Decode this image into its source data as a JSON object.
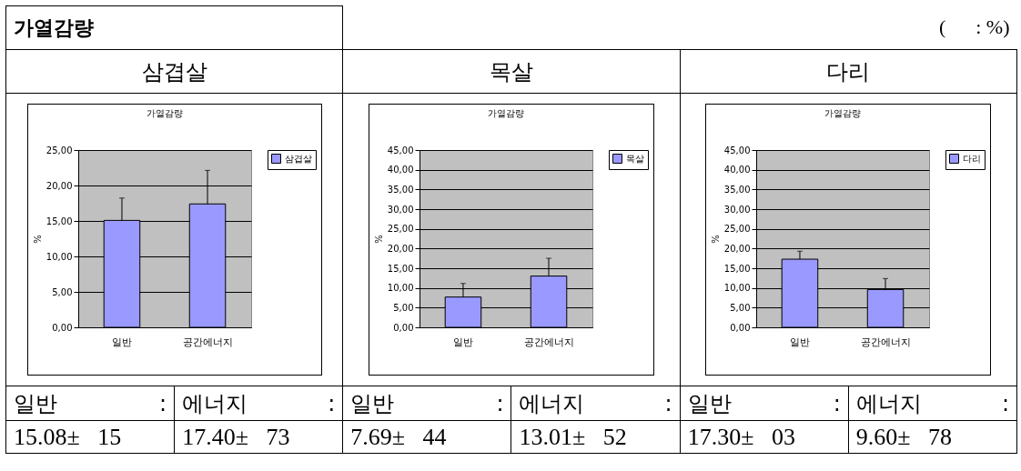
{
  "chart_data": [
    {
      "type": "bar",
      "title": "가열감량",
      "subtitle": "삼겹살",
      "ylabel": "%",
      "categories": [
        "일반",
        "공간에너지"
      ],
      "series": [
        {
          "name": "삼겹살",
          "color": "#9999ff",
          "values": [
            15.08,
            17.4
          ],
          "errors": [
            [
              15.08,
              18.23
            ],
            [
              17.4,
              22.13
            ]
          ]
        }
      ],
      "ylim": [
        0,
        25
      ],
      "yticks": [
        {
          "value": 0,
          "label": "0,00"
        },
        {
          "value": 5,
          "label": "5,00"
        },
        {
          "value": 10,
          "label": "10,00"
        },
        {
          "value": 15,
          "label": "15,00"
        },
        {
          "value": 20,
          "label": "20,00"
        },
        {
          "value": 25,
          "label": "25,00"
        }
      ],
      "grid": "y",
      "legend": "right",
      "annotations": [
        "가열감량",
        "(      : %)",
        "일반 :",
        "15.08±   15",
        "에너지 :",
        "17.40±   73"
      ]
    },
    {
      "type": "bar",
      "title": "가열감량",
      "subtitle": "목살",
      "ylabel": "%",
      "categories": [
        "일반",
        "공간에너지"
      ],
      "series": [
        {
          "name": "목살",
          "color": "#9999ff",
          "values": [
            7.69,
            13.01
          ],
          "errors": [
            [
              7.69,
              11.13
            ],
            [
              13.01,
              17.53
            ]
          ]
        }
      ],
      "ylim": [
        0,
        45
      ],
      "yticks": [
        {
          "value": 0,
          "label": "0,00"
        },
        {
          "value": 5,
          "label": "5,00"
        },
        {
          "value": 10,
          "label": "10,00"
        },
        {
          "value": 15,
          "label": "15,00"
        },
        {
          "value": 20,
          "label": "20,00"
        },
        {
          "value": 25,
          "label": "25,00"
        },
        {
          "value": 30,
          "label": "30,00"
        },
        {
          "value": 35,
          "label": "35,00"
        },
        {
          "value": 40,
          "label": "40,00"
        },
        {
          "value": 45,
          "label": "45,00"
        }
      ],
      "grid": "y",
      "legend": "right",
      "annotations": [
        "일반 :",
        "7.69±   44",
        "에너지 :",
        "13.01±   52"
      ]
    },
    {
      "type": "bar",
      "title": "가열감량",
      "subtitle": "다리",
      "ylabel": "%",
      "categories": [
        "일반",
        "공간에너지"
      ],
      "series": [
        {
          "name": "다리",
          "color": "#9999ff",
          "values": [
            17.3,
            9.6
          ],
          "errors": [
            [
              17.3,
              19.33
            ],
            [
              9.6,
              12.38
            ]
          ]
        }
      ],
      "ylim": [
        0,
        45
      ],
      "yticks": [
        {
          "value": 0,
          "label": "0,00"
        },
        {
          "value": 5,
          "label": "5,00"
        },
        {
          "value": 10,
          "label": "10,00"
        },
        {
          "value": 15,
          "label": "15,00"
        },
        {
          "value": 20,
          "label": "20,00"
        },
        {
          "value": 25,
          "label": "25,00"
        },
        {
          "value": 30,
          "label": "30,00"
        },
        {
          "value": 35,
          "label": "35,00"
        },
        {
          "value": 40,
          "label": "40,00"
        },
        {
          "value": 45,
          "label": "45,00"
        }
      ],
      "grid": "y",
      "legend": "right",
      "annotations": [
        "일반 :",
        "17.30±   03",
        "에너지 :",
        "9.60±   78"
      ]
    }
  ]
}
